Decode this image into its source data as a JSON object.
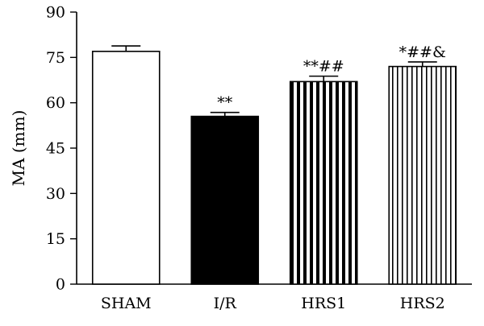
{
  "chart_data": {
    "type": "bar",
    "title": "",
    "xlabel": "",
    "ylabel": "MA (mm)",
    "ylim": [
      0,
      90
    ],
    "yticks": [
      0,
      15,
      30,
      45,
      60,
      75,
      90
    ],
    "grid": false,
    "categories": [
      "SHAM",
      "I/R",
      "HRS1",
      "HRS2"
    ],
    "values": [
      77,
      55.5,
      67,
      72
    ],
    "errors": [
      1.8,
      1.3,
      1.8,
      1.5
    ],
    "annotations": [
      "",
      "**",
      "**##",
      "*##&"
    ],
    "fills": [
      {
        "style": "solid",
        "color": "#ffffff"
      },
      {
        "style": "solid",
        "color": "#000000"
      },
      {
        "style": "stripes-wide",
        "color": "#000000"
      },
      {
        "style": "stripes-thin",
        "color": "#000000"
      }
    ]
  }
}
